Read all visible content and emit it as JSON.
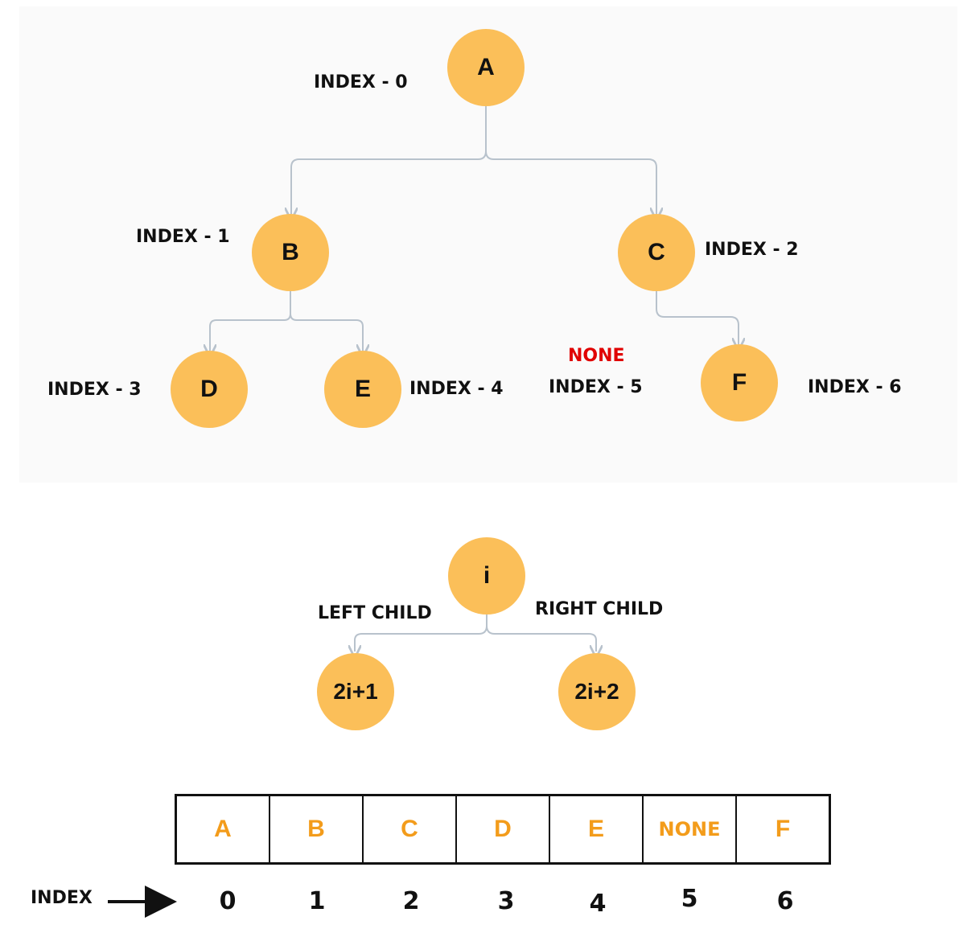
{
  "tree": {
    "nodes": [
      {
        "id": "A",
        "label": "A",
        "index_label": "INDEX - 0"
      },
      {
        "id": "B",
        "label": "B",
        "index_label": "INDEX - 1"
      },
      {
        "id": "C",
        "label": "C",
        "index_label": "INDEX - 2"
      },
      {
        "id": "D",
        "label": "D",
        "index_label": "INDEX - 3"
      },
      {
        "id": "E",
        "label": "E",
        "index_label": "INDEX - 4"
      },
      {
        "id": "F",
        "label": "F",
        "index_label": "INDEX - 6"
      }
    ],
    "edges": [
      [
        "A",
        "B"
      ],
      [
        "A",
        "C"
      ],
      [
        "B",
        "D"
      ],
      [
        "B",
        "E"
      ],
      [
        "C",
        "F"
      ]
    ],
    "missing": {
      "label": "NONE",
      "index_label": "INDEX - 5"
    }
  },
  "formula": {
    "parent": "i",
    "left_label": "LEFT CHILD",
    "right_label": "RIGHT CHILD",
    "left_child": "2i+1",
    "right_child": "2i+2"
  },
  "array": {
    "cells": [
      "A",
      "B",
      "C",
      "D",
      "E",
      "NONE",
      "F"
    ],
    "row_label": "INDEX",
    "indices": [
      "0",
      "1",
      "2",
      "3",
      "4",
      "5",
      "6"
    ]
  },
  "colors": {
    "node_fill": "#fbbf59",
    "array_text": "#f39c1b",
    "none_text": "#e00000",
    "edge": "#b8c2cc",
    "panel_bg": "#fafafa"
  }
}
